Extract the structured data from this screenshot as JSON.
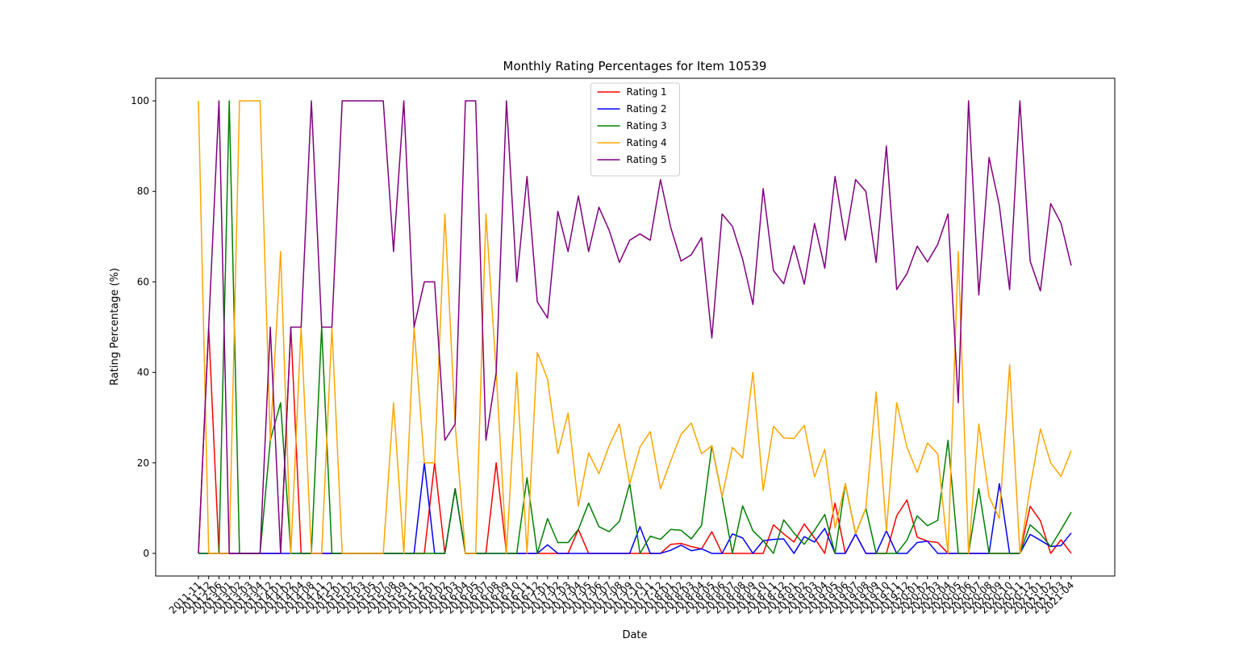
{
  "chart_data": {
    "type": "line",
    "title": "Monthly Rating Percentages for Item 10539",
    "xlabel": "Date",
    "ylabel": "Rating Percentage (%)",
    "categories": [
      "2011-11",
      "2011-12",
      "2012-06",
      "2013-01",
      "2013-02",
      "2013-03",
      "2013-04",
      "2013-12",
      "2014-01",
      "2014-02",
      "2014-04",
      "2014-08",
      "2014-11",
      "2014-12",
      "2015-01",
      "2015-02",
      "2015-03",
      "2015-05",
      "2015-07",
      "2015-08",
      "2015-09",
      "2015-11",
      "2015-12",
      "2016-01",
      "2016-02",
      "2016-03",
      "2016-04",
      "2016-05",
      "2016-07",
      "2016-08",
      "2016-09",
      "2016-10",
      "2016-11",
      "2016-12",
      "2017-01",
      "2017-02",
      "2017-03",
      "2017-04",
      "2017-05",
      "2017-06",
      "2017-07",
      "2017-08",
      "2017-09",
      "2017-10",
      "2017-11",
      "2017-12",
      "2018-01",
      "2018-02",
      "2018-03",
      "2018-04",
      "2018-05",
      "2018-06",
      "2018-07",
      "2018-08",
      "2018-09",
      "2018-10",
      "2018-11",
      "2018-12",
      "2019-01",
      "2019-02",
      "2019-03",
      "2019-04",
      "2019-05",
      "2019-06",
      "2019-07",
      "2019-08",
      "2019-09",
      "2019-10",
      "2019-11",
      "2019-12",
      "2020-01",
      "2020-02",
      "2020-03",
      "2020-04",
      "2020-05",
      "2020-06",
      "2020-07",
      "2020-08",
      "2020-09",
      "2020-10",
      "2020-11",
      "2020-12",
      "2021-01",
      "2021-02",
      "2021-03",
      "2021-04"
    ],
    "series": [
      {
        "name": "Rating 1",
        "color": "red",
        "values": [
          0,
          50,
          0,
          0,
          0,
          0,
          0,
          0,
          0,
          50,
          0,
          0,
          0,
          0,
          0,
          0,
          0,
          0,
          0,
          0,
          0,
          0,
          0,
          20,
          0,
          14.3,
          0,
          0,
          0,
          20,
          0,
          0,
          0,
          0,
          0,
          0,
          0,
          5.3,
          0,
          0,
          0,
          0,
          0,
          0,
          0,
          0,
          2,
          2.2,
          1.5,
          1,
          4.8,
          0,
          0,
          0,
          0,
          0,
          6.3,
          4.3,
          2.5,
          6.5,
          3.4,
          0,
          11.1,
          0,
          4.3,
          0,
          0,
          0,
          8.3,
          11.8,
          3.6,
          2.7,
          2.4,
          0,
          0,
          0,
          0,
          0,
          0,
          0,
          0,
          10.4,
          7.2,
          0,
          3,
          0
        ]
      },
      {
        "name": "Rating 2",
        "color": "blue",
        "values": [
          0,
          0,
          0,
          0,
          0,
          0,
          0,
          0,
          0,
          0,
          0,
          0,
          0,
          0,
          0,
          0,
          0,
          0,
          0,
          0,
          0,
          0,
          20,
          0,
          0,
          14.3,
          0,
          0,
          0,
          0,
          0,
          0,
          0,
          0,
          1.9,
          0,
          0,
          0,
          0,
          0,
          0,
          0,
          0,
          5.9,
          0,
          0,
          0.7,
          1.8,
          0.6,
          1,
          0,
          0,
          4.3,
          3.4,
          0,
          2.8,
          3.1,
          3.2,
          0,
          3.7,
          2.5,
          5.5,
          0,
          0,
          4.3,
          0,
          0,
          5,
          0,
          0,
          2.4,
          2.7,
          0,
          0,
          0,
          0,
          0,
          0,
          15.4,
          0,
          0,
          4.2,
          2.9,
          1.5,
          1.7,
          4.5
        ]
      },
      {
        "name": "Rating 3",
        "color": "green",
        "values": [
          0,
          0,
          0,
          100,
          0,
          0,
          0,
          25,
          33.3,
          0,
          0,
          0,
          50,
          0,
          0,
          0,
          0,
          0,
          0,
          0,
          0,
          0,
          0,
          0,
          0,
          14.3,
          0,
          0,
          0,
          0,
          0,
          0,
          16.7,
          0,
          7.7,
          2.4,
          2.4,
          5.3,
          11.1,
          5.9,
          4.8,
          7.1,
          15.4,
          0,
          3.8,
          3.1,
          5.3,
          5.1,
          3.2,
          6.2,
          23.8,
          12.5,
          0,
          10.5,
          5,
          2.8,
          0,
          7.4,
          4.5,
          2,
          5.1,
          8.6,
          0,
          15.4,
          4.3,
          10,
          0,
          0,
          0,
          2.9,
          8.3,
          6.1,
          7.3,
          25,
          0,
          0,
          14.3,
          0,
          0,
          0,
          0,
          6.3,
          4.3,
          1.5,
          5.2,
          9.1
        ]
      },
      {
        "name": "Rating 4",
        "color": "orange",
        "values": [
          100,
          0,
          0,
          0,
          100,
          100,
          100,
          25,
          66.7,
          0,
          50,
          0,
          0,
          50,
          0,
          0,
          0,
          0,
          0,
          33.3,
          0,
          50,
          20,
          20,
          75,
          28.6,
          0,
          0,
          75,
          40,
          0,
          40,
          0,
          44.4,
          38.5,
          22,
          31,
          10.5,
          22.2,
          17.6,
          23.8,
          28.6,
          15.4,
          23.5,
          26.9,
          14.3,
          20.5,
          26.3,
          28.8,
          22,
          23.8,
          12.5,
          23.4,
          21.1,
          40,
          13.9,
          28.1,
          25.5,
          25.4,
          28.3,
          16.9,
          23,
          5.6,
          15.4,
          4.3,
          10,
          35.7,
          5,
          33.3,
          23.5,
          17.9,
          24.4,
          22,
          0,
          66.7,
          0,
          28.6,
          12.5,
          7.7,
          41.7,
          0,
          14.6,
          27.5,
          20,
          17,
          22.7
        ]
      },
      {
        "name": "Rating 5",
        "color": "purple",
        "values": [
          0,
          50,
          100,
          0,
          0,
          0,
          0,
          50,
          0,
          50,
          50,
          100,
          50,
          50,
          100,
          100,
          100,
          100,
          100,
          66.7,
          100,
          50,
          60,
          60,
          25,
          28.6,
          100,
          100,
          25,
          40,
          100,
          60,
          83.3,
          55.6,
          52,
          75.6,
          66.7,
          79,
          66.7,
          76.5,
          71.4,
          64.3,
          69.2,
          70.6,
          69.2,
          82.6,
          72,
          64.6,
          66,
          69.8,
          47.6,
          75,
          72.3,
          65,
          55,
          80.6,
          62.5,
          59.6,
          68,
          59.5,
          72.9,
          63,
          83.3,
          69.2,
          82.6,
          80,
          64.3,
          90,
          58.3,
          61.8,
          67.9,
          64.4,
          68.3,
          75,
          33.3,
          100,
          57.1,
          87.5,
          76.9,
          58.3,
          100,
          64.6,
          58,
          77.3,
          73,
          63.6
        ]
      }
    ],
    "ylim": [
      -5,
      105
    ],
    "yticks": [
      0,
      20,
      40,
      60,
      80,
      100
    ],
    "grid": false,
    "legend": "upper center"
  }
}
